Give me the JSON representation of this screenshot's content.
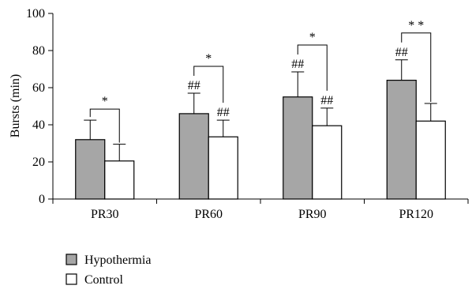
{
  "chart_data": {
    "type": "bar",
    "ylabel": "Bursts (min)",
    "xlabel": "",
    "ylim": [
      0,
      100
    ],
    "yticks": [
      0,
      20,
      40,
      60,
      80,
      100
    ],
    "categories": [
      "PR30",
      "PR60",
      "PR90",
      "PR120"
    ],
    "series": [
      {
        "name": "Hypothermia",
        "color": "#a6a6a6",
        "values": [
          32,
          46,
          55,
          64
        ],
        "errors": [
          10.5,
          11,
          13.5,
          11
        ]
      },
      {
        "name": "Control",
        "color": "#ffffff",
        "values": [
          20.5,
          33.5,
          39.5,
          42
        ],
        "errors": [
          9,
          9,
          9.5,
          9.5
        ]
      }
    ],
    "bar_marks": [
      {
        "category": "PR30",
        "series": "Hypothermia",
        "label": ""
      },
      {
        "category": "PR30",
        "series": "Control",
        "label": ""
      },
      {
        "category": "PR60",
        "series": "Hypothermia",
        "label": "##"
      },
      {
        "category": "PR60",
        "series": "Control",
        "label": "##"
      },
      {
        "category": "PR90",
        "series": "Hypothermia",
        "label": "##"
      },
      {
        "category": "PR90",
        "series": "Control",
        "label": "##"
      },
      {
        "category": "PR120",
        "series": "Hypothermia",
        "label": "##"
      },
      {
        "category": "PR120",
        "series": "Control",
        "label": ""
      }
    ],
    "significance": [
      {
        "category": "PR30",
        "label": "*"
      },
      {
        "category": "PR60",
        "label": "*"
      },
      {
        "category": "PR90",
        "label": "*"
      },
      {
        "category": "PR120",
        "label": "* *"
      }
    ],
    "legend": {
      "position": "bottom-left"
    },
    "grid": false
  }
}
